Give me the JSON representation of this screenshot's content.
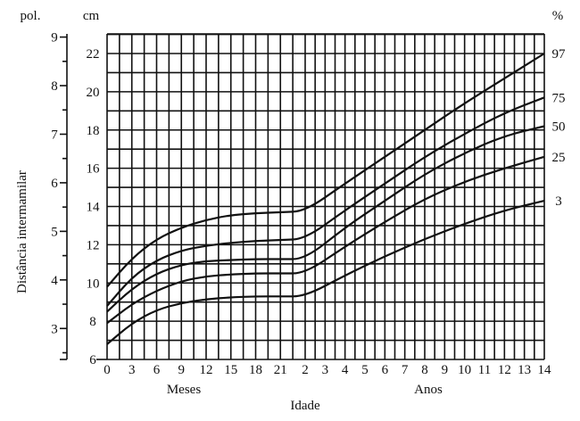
{
  "chart_data": {
    "type": "line",
    "title": "",
    "ylabel": "Distância intermamilar",
    "xlabel": "Idade",
    "x_group_labels": [
      "Meses",
      "Anos"
    ],
    "left_unit_inch": "pol.",
    "left_unit_cm": "cm",
    "right_unit": "%",
    "x_ticks_months": [
      "0",
      "3",
      "6",
      "9",
      "12",
      "15",
      "18",
      "21"
    ],
    "x_ticks_years": [
      "2",
      "3",
      "4",
      "5",
      "6",
      "7",
      "8",
      "9",
      "10",
      "11",
      "12",
      "13",
      "14"
    ],
    "y_ticks_cm": [
      "6",
      "8",
      "10",
      "12",
      "14",
      "16",
      "18",
      "20",
      "22"
    ],
    "y_ticks_inch": [
      "3",
      "4",
      "5",
      "6",
      "7",
      "8",
      "9"
    ],
    "ylim_cm": [
      6,
      23
    ],
    "ylim_inch": [
      2.4,
      9
    ],
    "grid": true,
    "series": [
      {
        "name": "97",
        "points": [
          [
            "0 months",
            9.8
          ],
          [
            "3 months",
            11.3
          ],
          [
            "6 months",
            12.3
          ],
          [
            "9 months",
            12.9
          ],
          [
            "12 months",
            13.3
          ],
          [
            "15 months",
            13.55
          ],
          [
            "18 months",
            13.65
          ],
          [
            "21 months",
            13.7
          ],
          [
            "2 years",
            13.75
          ],
          [
            "4 years",
            15.2
          ],
          [
            "6 years",
            16.6
          ],
          [
            "8 years",
            18.0
          ],
          [
            "10 years",
            19.4
          ],
          [
            "12 years",
            20.7
          ],
          [
            "14 years",
            22.0
          ]
        ]
      },
      {
        "name": "75",
        "points": [
          [
            "0 months",
            8.8
          ],
          [
            "3 months",
            10.3
          ],
          [
            "6 months",
            11.2
          ],
          [
            "9 months",
            11.7
          ],
          [
            "12 months",
            11.95
          ],
          [
            "15 months",
            12.1
          ],
          [
            "18 months",
            12.2
          ],
          [
            "21 months",
            12.25
          ],
          [
            "2 years",
            12.3
          ],
          [
            "4 years",
            13.8
          ],
          [
            "6 years",
            15.2
          ],
          [
            "8 years",
            16.6
          ],
          [
            "10 years",
            17.8
          ],
          [
            "12 years",
            18.9
          ],
          [
            "14 years",
            19.7
          ]
        ]
      },
      {
        "name": "50",
        "points": [
          [
            "0 months",
            8.5
          ],
          [
            "3 months",
            9.7
          ],
          [
            "6 months",
            10.5
          ],
          [
            "9 months",
            10.95
          ],
          [
            "12 months",
            11.15
          ],
          [
            "15 months",
            11.2
          ],
          [
            "18 months",
            11.25
          ],
          [
            "21 months",
            11.25
          ],
          [
            "2 years",
            11.25
          ],
          [
            "4 years",
            12.9
          ],
          [
            "6 years",
            14.3
          ],
          [
            "8 years",
            15.7
          ],
          [
            "10 years",
            16.8
          ],
          [
            "12 years",
            17.7
          ],
          [
            "14 years",
            18.2
          ]
        ]
      },
      {
        "name": "25",
        "points": [
          [
            "0 months",
            7.9
          ],
          [
            "3 months",
            8.9
          ],
          [
            "6 months",
            9.6
          ],
          [
            "9 months",
            10.1
          ],
          [
            "12 months",
            10.35
          ],
          [
            "15 months",
            10.45
          ],
          [
            "18 months",
            10.5
          ],
          [
            "21 months",
            10.5
          ],
          [
            "2 years",
            10.5
          ],
          [
            "4 years",
            11.9
          ],
          [
            "6 years",
            13.2
          ],
          [
            "8 years",
            14.4
          ],
          [
            "10 years",
            15.3
          ],
          [
            "12 years",
            16.0
          ],
          [
            "14 years",
            16.6
          ]
        ]
      },
      {
        "name": "3",
        "points": [
          [
            "0 months",
            6.8
          ],
          [
            "3 months",
            7.9
          ],
          [
            "6 months",
            8.6
          ],
          [
            "9 months",
            8.95
          ],
          [
            "12 months",
            9.15
          ],
          [
            "15 months",
            9.25
          ],
          [
            "18 months",
            9.3
          ],
          [
            "21 months",
            9.3
          ],
          [
            "2 years",
            9.3
          ],
          [
            "4 years",
            10.4
          ],
          [
            "6 years",
            11.4
          ],
          [
            "8 years",
            12.3
          ],
          [
            "10 years",
            13.1
          ],
          [
            "12 years",
            13.8
          ],
          [
            "14 years",
            14.3
          ]
        ]
      }
    ]
  }
}
